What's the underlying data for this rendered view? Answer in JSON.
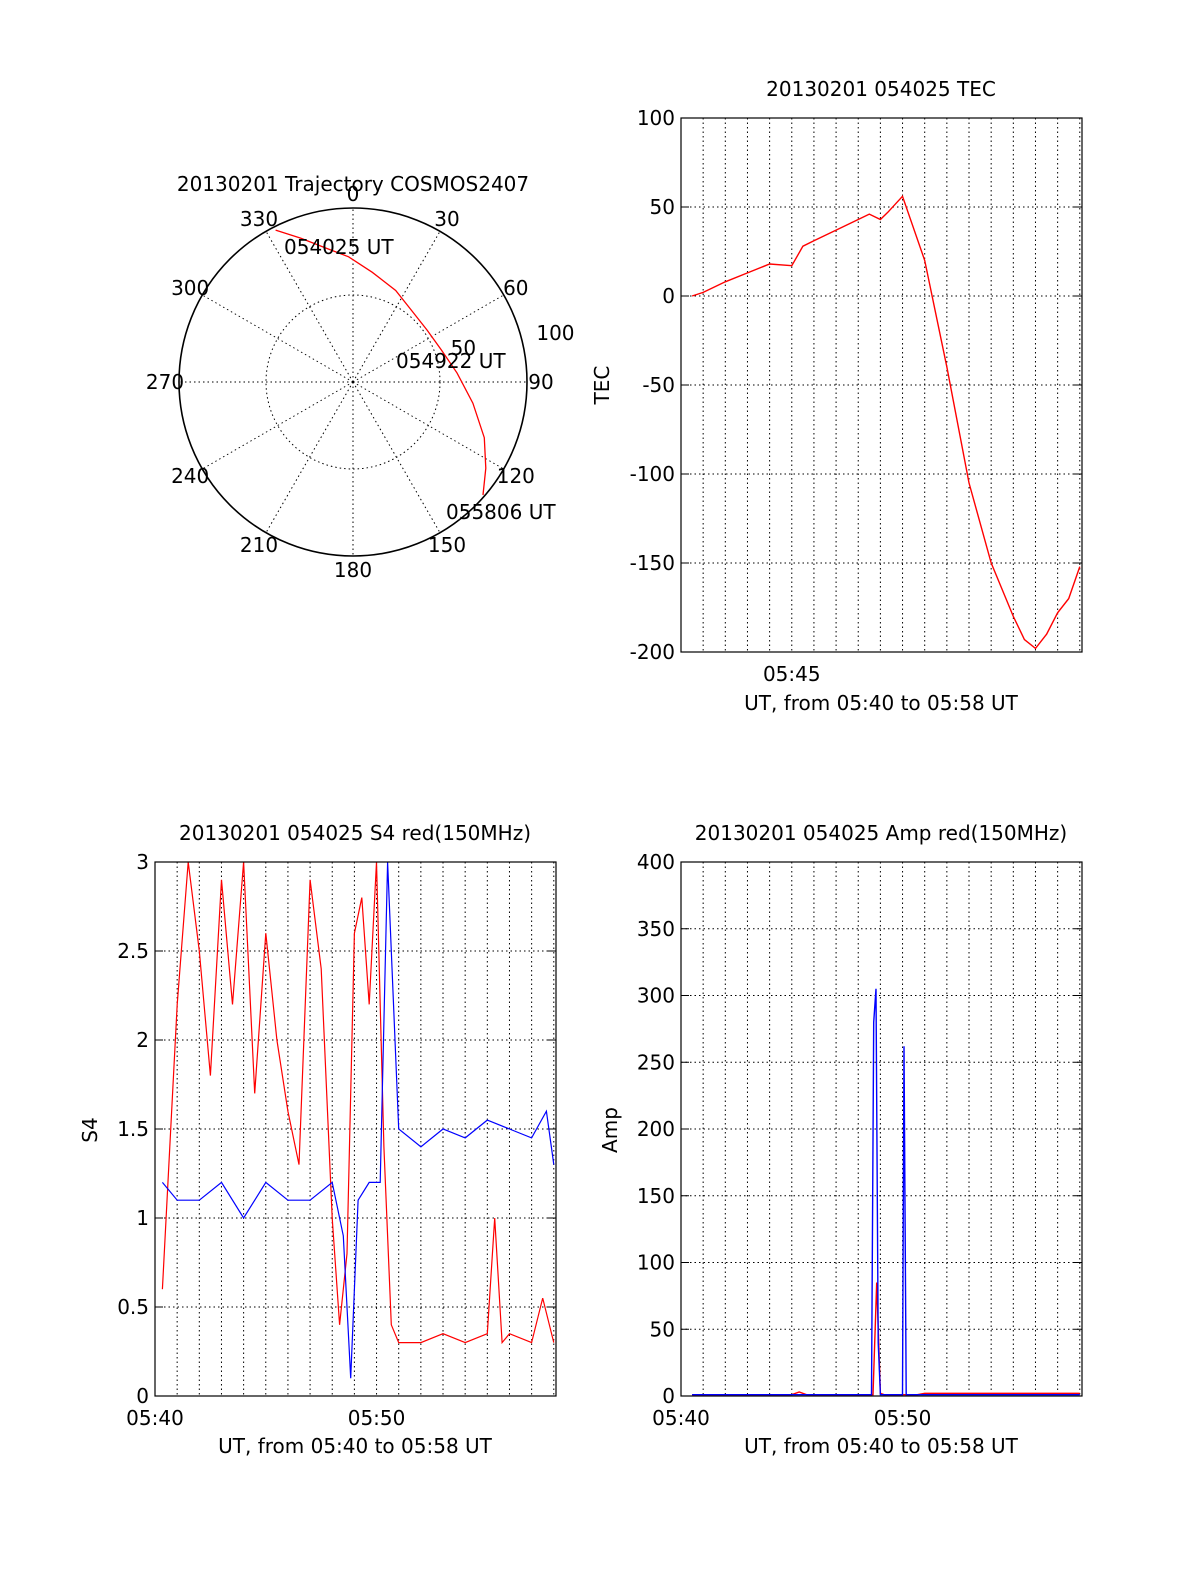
{
  "chart_data": [
    {
      "type": "polar",
      "title": "20130201 Trajectory COSMOS2407",
      "angle_labels": [
        "0",
        "30",
        "60",
        "90",
        "120",
        "150",
        "180",
        "210",
        "240",
        "270",
        "300",
        "330"
      ],
      "radial_labels": [
        "50",
        "100"
      ],
      "rlim": [
        0,
        100
      ],
      "grid": true,
      "series": [
        {
          "color": "#ff0000",
          "points": [
            [
              333,
              98
            ],
            [
              340,
              88
            ],
            [
              348,
              79
            ],
            [
              358,
              72
            ],
            [
              10,
              64
            ],
            [
              25,
              58
            ],
            [
              40,
              53
            ],
            [
              55,
              52
            ],
            [
              70,
              54
            ],
            [
              85,
              60
            ],
            [
              100,
              70
            ],
            [
              113,
              82
            ],
            [
              123,
              91
            ],
            [
              131,
              99
            ]
          ]
        }
      ],
      "annotations": [
        {
          "text": "054025 UT",
          "az": 338,
          "r": 90
        },
        {
          "text": "054922 UT",
          "az": 75,
          "r": 52
        },
        {
          "text": "055806 UT",
          "az": 130,
          "r": 99
        }
      ]
    },
    {
      "type": "line",
      "title": "20130201 054025 TEC",
      "xlabel": "UT, from 05:40 to 05:58 UT",
      "ylabel": "TEC",
      "xlim": [
        "05:40:00",
        "05:58:06"
      ],
      "ylim": [
        -200,
        100
      ],
      "yticks": [
        -200,
        -150,
        -100,
        -50,
        0,
        50,
        100
      ],
      "xticks": [
        "05:45"
      ],
      "grid": true,
      "series": [
        {
          "color": "#ff0000",
          "x": [
            "05:40:30",
            "05:41",
            "05:42",
            "05:43",
            "05:44",
            "05:45",
            "05:45:30",
            "05:46",
            "05:47",
            "05:48",
            "05:48:30",
            "05:49",
            "05:49:20",
            "05:50",
            "05:51",
            "05:52",
            "05:53",
            "05:54",
            "05:55",
            "05:55:30",
            "05:56",
            "05:56:30",
            "05:57",
            "05:57:30",
            "05:58"
          ],
          "y": [
            0,
            2,
            8,
            13,
            18,
            17,
            28,
            31,
            37,
            43,
            46,
            43,
            47,
            56,
            20,
            -40,
            -105,
            -150,
            -180,
            -193,
            -198,
            -190,
            -178,
            -170,
            -152
          ]
        }
      ]
    },
    {
      "type": "line",
      "title": "20130201 054025 S4 red(150MHz)",
      "xlabel": "UT, from 05:40 to 05:58 UT",
      "ylabel": "S4",
      "xlim": [
        "05:40:00",
        "05:58:06"
      ],
      "ylim": [
        0,
        3
      ],
      "yticks": [
        "0",
        "0.5",
        "1",
        "1.5",
        "2",
        "2.5",
        "3"
      ],
      "xticks": [
        "05:40",
        "05:50"
      ],
      "grid": true,
      "series": [
        {
          "color": "#ff0000",
          "x": [
            "05:40:20",
            "05:40:40",
            "05:41:00",
            "05:41:30",
            "05:42:00",
            "05:42:30",
            "05:43:00",
            "05:43:30",
            "05:44:00",
            "05:44:30",
            "05:45:00",
            "05:45:30",
            "05:46:00",
            "05:46:30",
            "05:47:00",
            "05:47:30",
            "05:48:00",
            "05:48:20",
            "05:48:40",
            "05:49:00",
            "05:49:20",
            "05:49:40",
            "05:50:00",
            "05:50:20",
            "05:50:40",
            "05:51:00",
            "05:52:00",
            "05:53:00",
            "05:54:00",
            "05:55:00",
            "05:55:20",
            "05:55:40",
            "05:56:00",
            "05:57:00",
            "05:57:30",
            "05:58:00"
          ],
          "y": [
            0.6,
            1.4,
            2.2,
            3.0,
            2.5,
            1.8,
            2.9,
            2.2,
            3.0,
            1.7,
            2.6,
            2.0,
            1.6,
            1.3,
            2.9,
            2.4,
            1.0,
            0.4,
            0.8,
            2.6,
            2.8,
            2.2,
            3.0,
            1.4,
            0.4,
            0.3,
            0.3,
            0.35,
            0.3,
            0.35,
            1.0,
            0.3,
            0.35,
            0.3,
            0.55,
            0.3
          ]
        },
        {
          "color": "#0000ff",
          "x": [
            "05:40:20",
            "05:41:00",
            "05:42:00",
            "05:43:00",
            "05:44:00",
            "05:45:00",
            "05:46:00",
            "05:47:00",
            "05:48:00",
            "05:48:30",
            "05:48:50",
            "05:49:10",
            "05:49:40",
            "05:50:10",
            "05:50:30",
            "05:51:00",
            "05:52:00",
            "05:53:00",
            "05:54:00",
            "05:55:00",
            "05:56:00",
            "05:57:00",
            "05:57:40",
            "05:58:00"
          ],
          "y": [
            1.2,
            1.1,
            1.1,
            1.2,
            1.0,
            1.2,
            1.1,
            1.1,
            1.2,
            0.9,
            0.1,
            1.1,
            1.2,
            1.2,
            3.0,
            1.5,
            1.4,
            1.5,
            1.45,
            1.55,
            1.5,
            1.45,
            1.6,
            1.3
          ]
        }
      ]
    },
    {
      "type": "line",
      "title": "20130201 054025 Amp red(150MHz)",
      "xlabel": "UT, from 05:40 to 05:58 UT",
      "ylabel": "Amp",
      "xlim": [
        "05:40:00",
        "05:58:06"
      ],
      "ylim": [
        0,
        400
      ],
      "yticks": [
        0,
        50,
        100,
        150,
        200,
        250,
        300,
        350,
        400
      ],
      "xticks": [
        "05:40",
        "05:50"
      ],
      "grid": true,
      "series": [
        {
          "color": "#ff0000",
          "x": [
            "05:40:30",
            "05:45:00",
            "05:45:20",
            "05:45:40",
            "05:48:40",
            "05:48:50",
            "05:49:00",
            "05:49:10",
            "05:50:40",
            "05:51:00",
            "05:58:00"
          ],
          "y": [
            1,
            1,
            3,
            1,
            1,
            85,
            2,
            1,
            1,
            2,
            2
          ]
        },
        {
          "color": "#0000ff",
          "x": [
            "05:40:30",
            "05:48:36",
            "05:48:42",
            "05:48:48",
            "05:48:54",
            "05:49:00",
            "05:49:06",
            "05:50:00",
            "05:50:04",
            "05:50:10",
            "05:58:00"
          ],
          "y": [
            1,
            1,
            280,
            305,
            40,
            1,
            1,
            1,
            262,
            1,
            1
          ]
        }
      ]
    }
  ]
}
